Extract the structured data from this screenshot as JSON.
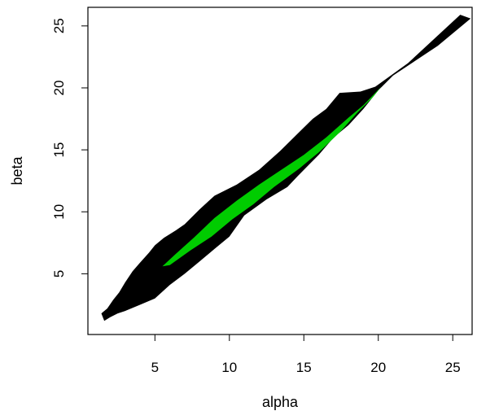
{
  "chart_data": {
    "type": "area",
    "title": "",
    "xlabel": "alpha",
    "ylabel": "beta",
    "xlim": [
      0.5,
      26.3
    ],
    "ylim": [
      0.1,
      26.5
    ],
    "x_ticks": [
      5,
      10,
      15,
      20,
      25
    ],
    "y_ticks": [
      5,
      10,
      15,
      20,
      25
    ],
    "x_tick_labels": [
      "5",
      "10",
      "15",
      "20",
      "25"
    ],
    "y_tick_labels": [
      "5",
      "10",
      "15",
      "20",
      "25"
    ],
    "grid": false,
    "legend": "none",
    "series": [
      {
        "color": "#000000",
        "polygon": [
          [
            1.4,
            1.8
          ],
          [
            1.8,
            2.2
          ],
          [
            2.2,
            2.9
          ],
          [
            2.6,
            3.5
          ],
          [
            3.0,
            4.3
          ],
          [
            3.5,
            5.2
          ],
          [
            4.0,
            5.9
          ],
          [
            4.6,
            6.7
          ],
          [
            5.0,
            7.3
          ],
          [
            5.6,
            7.9
          ],
          [
            6.4,
            8.5
          ],
          [
            7.0,
            9.0
          ],
          [
            8.0,
            10.2
          ],
          [
            9.0,
            11.3
          ],
          [
            10.5,
            12.2
          ],
          [
            12.0,
            13.4
          ],
          [
            13.4,
            14.9
          ],
          [
            14.5,
            16.2
          ],
          [
            15.6,
            17.5
          ],
          [
            16.5,
            18.3
          ],
          [
            17.4,
            19.6
          ],
          [
            18.8,
            19.7
          ],
          [
            19.8,
            20.1
          ],
          [
            22.0,
            22.0
          ],
          [
            25.5,
            25.9
          ],
          [
            26.2,
            25.6
          ],
          [
            24.0,
            23.4
          ],
          [
            21.0,
            21.0
          ],
          [
            20.0,
            19.8
          ],
          [
            19.0,
            18.3
          ],
          [
            18.0,
            17.0
          ],
          [
            17.0,
            16.0
          ],
          [
            16.0,
            14.6
          ],
          [
            14.6,
            12.9
          ],
          [
            13.9,
            12.0
          ],
          [
            12.5,
            11.0
          ],
          [
            11.0,
            9.7
          ],
          [
            10.0,
            8.0
          ],
          [
            9.0,
            7.0
          ],
          [
            8.0,
            6.0
          ],
          [
            7.0,
            5.0
          ],
          [
            6.0,
            4.1
          ],
          [
            5.0,
            3.0
          ],
          [
            4.0,
            2.5
          ],
          [
            3.0,
            2.0
          ],
          [
            2.5,
            1.8
          ],
          [
            2.0,
            1.5
          ],
          [
            1.6,
            1.2
          ]
        ]
      },
      {
        "color": "#00cc00",
        "polygon": [
          [
            5.5,
            5.6
          ],
          [
            6.4,
            6.6
          ],
          [
            7.6,
            7.9
          ],
          [
            9.0,
            9.5
          ],
          [
            10.5,
            10.9
          ],
          [
            12.0,
            12.2
          ],
          [
            13.5,
            13.4
          ],
          [
            15.0,
            14.6
          ],
          [
            16.5,
            16.0
          ],
          [
            18.0,
            17.6
          ],
          [
            19.0,
            18.6
          ],
          [
            20.2,
            20.1
          ],
          [
            19.6,
            19.2
          ],
          [
            18.6,
            18.0
          ],
          [
            17.4,
            16.4
          ],
          [
            16.0,
            14.8
          ],
          [
            14.7,
            13.5
          ],
          [
            13.0,
            12.0
          ],
          [
            11.6,
            10.6
          ],
          [
            10.2,
            9.4
          ],
          [
            8.8,
            8.0
          ],
          [
            7.4,
            6.9
          ],
          [
            6.0,
            5.7
          ]
        ]
      }
    ]
  }
}
